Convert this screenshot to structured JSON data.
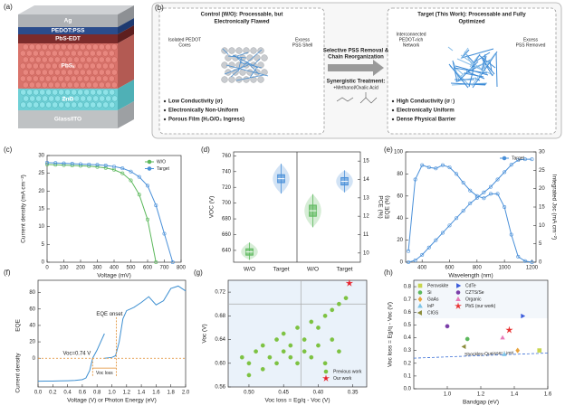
{
  "panel_labels": [
    "(a)",
    "(b)",
    "(c)",
    "(d)",
    "(e)",
    "(f)",
    "(g)",
    "(h)"
  ],
  "device_stack": {
    "layers": [
      "Ag",
      "PEDOT:PSS",
      "PbS-EDT",
      "PbSₓ",
      "ZnO",
      "Glass/ITO"
    ]
  },
  "schematic": {
    "control_title": [
      "Control (W/O): Processable, but",
      "Electronically Flawed"
    ],
    "target_title": [
      "Target (This Work): Processable and Fully",
      "Optimized"
    ],
    "control_labels": [
      [
        "Isolated PEDOT",
        "Cores"
      ],
      [
        "Excess",
        "PSS Shell"
      ]
    ],
    "target_labels": [
      [
        "Interconnected",
        "PEDOT-rich",
        "Network"
      ],
      [
        "Excess",
        "PSS Removed"
      ]
    ],
    "arrow_top": [
      "Selective PSS Removal &",
      "Chain Reorganization"
    ],
    "arrow_bottom": [
      "Synergistic Treatment:",
      "+Methanol/Oxalic Acid"
    ],
    "control_bullets": [
      "Low Conductivity (σ)",
      "Electronically Non-Uniform",
      "Porous Film (H₂O/O₂ Ingress)"
    ],
    "target_bullets": [
      "High Conductivity (σ↑)",
      "Electronically Uniform",
      "Dense Physical Barrier"
    ]
  },
  "chart_data": [
    {
      "type": "line",
      "xlabel": "Voltage (mV)",
      "ylabel": "Current density (mA cm⁻²)",
      "x": [
        0,
        50,
        100,
        150,
        200,
        250,
        300,
        350,
        400,
        450,
        500,
        550,
        600,
        650,
        700,
        750
      ],
      "xlim": [
        0,
        800
      ],
      "xticks": [
        0,
        100,
        200,
        300,
        400,
        500,
        600,
        700,
        800
      ],
      "ylim": [
        0,
        30
      ],
      "yticks": [
        0,
        5,
        10,
        15,
        20,
        25,
        30
      ],
      "legend": "upper right",
      "markers": true,
      "series": [
        {
          "name": "W/O",
          "color": "#5cb85c",
          "values": [
            27.5,
            27.4,
            27.3,
            27.2,
            27.1,
            27.0,
            26.8,
            26.5,
            26.0,
            25.0,
            23.0,
            19.0,
            12.0,
            0,
            null,
            null
          ]
        },
        {
          "name": "Target",
          "color": "#4a90d9",
          "values": [
            28.0,
            27.9,
            27.8,
            27.7,
            27.6,
            27.5,
            27.4,
            27.2,
            26.9,
            26.4,
            25.5,
            24.0,
            21.5,
            16.0,
            8.0,
            0
          ]
        }
      ]
    },
    {
      "type": "box",
      "ylabel": "VOC (V)",
      "y2label": "PCE (%)",
      "categories": [
        "W/O",
        "Target",
        "W/O",
        "Target"
      ],
      "ylim": [
        625,
        765
      ],
      "yticks": [
        640,
        660,
        680,
        700,
        720,
        740,
        760
      ],
      "y2lim": [
        9.5,
        15.5
      ],
      "y2ticks": [
        10,
        11,
        12,
        13,
        14,
        15
      ],
      "boxes": [
        {
          "axis": "y",
          "color": "#5cb85c",
          "min": 628,
          "q1": 634,
          "median": 638,
          "q3": 642,
          "max": 650
        },
        {
          "axis": "y",
          "color": "#4a90d9",
          "min": 712,
          "q1": 726,
          "median": 731,
          "q3": 736,
          "max": 750
        },
        {
          "axis": "y2",
          "color": "#5cb85c",
          "min": 11.4,
          "q1": 12.0,
          "median": 12.3,
          "q3": 12.6,
          "max": 13.2
        },
        {
          "axis": "y2",
          "color": "#4a90d9",
          "min": 13.3,
          "q1": 13.7,
          "median": 13.9,
          "q3": 14.1,
          "max": 14.5
        }
      ]
    },
    {
      "type": "line",
      "xlabel": "Wavelength (nm)",
      "ylabel": "EQE (%)",
      "y2label": "Integrated Jsc (mA cm⁻²)",
      "x": [
        300,
        350,
        400,
        450,
        500,
        550,
        600,
        650,
        700,
        750,
        800,
        850,
        900,
        950,
        1000,
        1050,
        1100,
        1150,
        1200
      ],
      "xlim": [
        280,
        1230
      ],
      "xticks": [
        400,
        600,
        800,
        1000,
        1200
      ],
      "ylim": [
        0,
        100
      ],
      "yticks": [
        0,
        20,
        40,
        60,
        80,
        100
      ],
      "y2lim": [
        0,
        30
      ],
      "y2ticks": [
        0,
        5,
        10,
        15,
        20,
        25,
        30
      ],
      "legend": "upper right",
      "markers": true,
      "series": [
        {
          "name": "Target",
          "color": "#4a90d9",
          "values": [
            10,
            75,
            88,
            86,
            85,
            88,
            86,
            80,
            72,
            65,
            60,
            58,
            62,
            62,
            50,
            25,
            5,
            1,
            0
          ]
        },
        {
          "axis": "y2",
          "color": "#4a90d9",
          "values": [
            0,
            0.5,
            2,
            4,
            6,
            8,
            10,
            12,
            14,
            16,
            17.5,
            19,
            20.5,
            22.5,
            24.5,
            26.5,
            27.8,
            28,
            28
          ]
        }
      ]
    },
    {
      "type": "line",
      "xlabel": "Voltage (V) or Photon Energy (eV)",
      "ylabels": [
        "EQE",
        "Current density"
      ],
      "xlim": [
        0,
        2
      ],
      "xticks": [
        {
          "value": 0,
          "label": "0.0"
        },
        {
          "value": 0.2,
          "label": "0.2"
        },
        {
          "value": 0.4,
          "label": "0.4"
        },
        {
          "value": 0.6,
          "label": "0.6"
        },
        {
          "value": 0.8,
          "label": "0.8"
        },
        {
          "value": 1,
          "label": "1.0"
        },
        {
          "value": 1.2,
          "label": "1.2"
        },
        {
          "value": 1.4,
          "label": "1.4"
        },
        {
          "value": 1.6,
          "label": "1.6"
        },
        {
          "value": 1.8,
          "label": "1.8"
        },
        {
          "value": 2,
          "label": "2.0"
        }
      ],
      "ylim": [
        -35,
        95
      ],
      "yticks": [
        0,
        20,
        40,
        60,
        80
      ],
      "voc": 0.74,
      "eqe_onset": 1.06,
      "annotations": [
        "EQE onset",
        "Voc=0.74 V",
        "Voc loss"
      ],
      "series": [
        {
          "color": "#3d8fd1",
          "x": [
            0,
            0.1,
            0.2,
            0.3,
            0.4,
            0.5,
            0.6,
            0.65,
            0.7,
            0.74,
            0.8,
            0.85,
            0.9
          ],
          "values": [
            -28,
            -27.9,
            -27.8,
            -27.6,
            -27.4,
            -27,
            -26,
            -24,
            -15,
            0,
            10,
            20,
            30
          ]
        },
        {
          "color": "#3d8fd1",
          "x": [
            0.9,
            1.0,
            1.05,
            1.1,
            1.15,
            1.2,
            1.25,
            1.3,
            1.4,
            1.5,
            1.6,
            1.7,
            1.8,
            1.9,
            2.0
          ],
          "values": [
            0,
            1,
            3,
            20,
            48,
            58,
            60,
            62,
            68,
            75,
            65,
            70,
            85,
            88,
            82
          ]
        }
      ]
    },
    {
      "type": "scatter",
      "xlabel": "Voc loss = Eg/q - Voc (V)",
      "ylabel": "Voc (V)",
      "xlim": [
        0.53,
        0.33
      ],
      "xticks": [
        {
          "value": 0.5,
          "label": "0.50"
        },
        {
          "value": 0.45,
          "label": "0.45"
        },
        {
          "value": 0.4,
          "label": "0.40"
        },
        {
          "value": 0.35,
          "label": "0.35"
        }
      ],
      "ylim": [
        0.56,
        0.74
      ],
      "yticks": [
        0.56,
        {
          "value": 0.6,
          "label": "0.60"
        },
        0.64,
        0.68,
        0.72
      ],
      "ref_x": 0.425,
      "ref_y": 0.7,
      "legend": "lower right",
      "series": [
        {
          "name": "Previous work",
          "color": "#7dc242",
          "marker": "circle",
          "x": [
            0.51,
            0.5,
            0.49,
            0.48,
            0.48,
            0.47,
            0.46,
            0.46,
            0.45,
            0.45,
            0.44,
            0.44,
            0.43,
            0.43,
            0.42,
            0.42,
            0.41,
            0.41,
            0.4,
            0.4,
            0.39,
            0.39,
            0.38,
            0.38,
            0.37,
            0.37,
            0.36,
            0.5
          ],
          "values": [
            0.61,
            0.6,
            0.62,
            0.63,
            0.59,
            0.61,
            0.64,
            0.6,
            0.62,
            0.65,
            0.61,
            0.63,
            0.66,
            0.6,
            0.62,
            0.64,
            0.67,
            0.61,
            0.63,
            0.66,
            0.68,
            0.6,
            0.69,
            0.64,
            0.62,
            0.7,
            0.71,
            0.58
          ]
        },
        {
          "name": "Our work",
          "color": "#e8202a",
          "marker": "star",
          "x": [
            0.355
          ],
          "values": [
            0.735
          ]
        }
      ]
    },
    {
      "type": "scatter",
      "xlabel": "Bandgap (eV)",
      "ylabel": "Voc loss = Eg/q - Voc (V)",
      "xlim": [
        0.8,
        1.6
      ],
      "xticks": [
        {
          "value": 1,
          "label": "1.0"
        },
        {
          "value": 1.2,
          "label": "1.2"
        },
        {
          "value": 1.4,
          "label": "1.4"
        },
        {
          "value": 1.6,
          "label": "1.6"
        }
      ],
      "ylim": [
        0,
        0.85
      ],
      "yticks": [
        {
          "value": 0,
          "label": "0.0"
        },
        0.1,
        0.2,
        0.3,
        0.4,
        0.5,
        0.6,
        0.7,
        0.8
      ],
      "legend": "upper left",
      "sq_limit": {
        "name": "Shockley-Queisser Limit",
        "x": [
          0.8,
          1.6
        ],
        "values": [
          0.24,
          0.28
        ]
      },
      "series": [
        {
          "name": "Perovskite",
          "color": "#c9d64f",
          "marker": "square",
          "x": [
            1.55
          ],
          "values": [
            0.3
          ]
        },
        {
          "name": "Si",
          "color": "#5cb85c",
          "marker": "circle",
          "x": [
            1.12
          ],
          "values": [
            0.39
          ]
        },
        {
          "name": "GaAs",
          "color": "#e8a33d",
          "marker": "diamond",
          "x": [
            1.42
          ],
          "values": [
            0.3
          ]
        },
        {
          "name": "InP",
          "color": "#7cc4e8",
          "marker": "triangle",
          "x": [
            1.34
          ],
          "values": [
            0.27
          ]
        },
        {
          "name": "CIGS",
          "color": "#8c8c3a",
          "marker": "triangle-left",
          "x": [
            1.1
          ],
          "values": [
            0.33
          ]
        },
        {
          "name": "CdTe",
          "color": "#3b5bdb",
          "marker": "triangle-right",
          "x": [
            1.45
          ],
          "values": [
            0.57
          ]
        },
        {
          "name": "CZTS/Se",
          "color": "#7a3ea8",
          "marker": "circle",
          "x": [
            1.0
          ],
          "values": [
            0.49
          ]
        },
        {
          "name": "Organic",
          "color": "#e87ab8",
          "marker": "triangle",
          "x": [
            1.33
          ],
          "values": [
            0.4
          ]
        },
        {
          "name": "PbS (our work)",
          "color": "#e83030",
          "marker": "star",
          "x": [
            1.37
          ],
          "values": [
            0.46
          ]
        }
      ]
    }
  ]
}
